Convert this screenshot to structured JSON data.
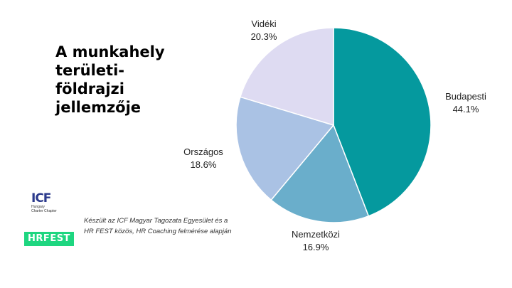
{
  "title_lines": [
    "A munkahely",
    "területi-",
    "földrajzi",
    "jellemzője"
  ],
  "chart_data": {
    "type": "pie",
    "title": "A munkahely területi-földrajzi jellemzője",
    "slices": [
      {
        "label": "Budapesti",
        "value": 44.1,
        "value_label": "44.1%",
        "color": "#05999e"
      },
      {
        "label": "Nemzetközi",
        "value": 16.9,
        "value_label": "16.9%",
        "color": "#6aaecb"
      },
      {
        "label": "Országos",
        "value": 18.6,
        "value_label": "18.6%",
        "color": "#aac2e4"
      },
      {
        "label": "Vidéki",
        "value": 20.3,
        "value_label": "20.3%",
        "color": "#dedbf2"
      }
    ],
    "start": "12 o'clock",
    "direction": "clockwise"
  },
  "logos": {
    "icf_mark": "ICF",
    "icf_sub_1": "Hungary",
    "icf_sub_2": "Charter Chapter",
    "hrfest": "HRFEST"
  },
  "footnote": "Készült az ICF Magyar Tagozata Egyesület és a HR FEST közös, HR Coaching felmérése alapján"
}
